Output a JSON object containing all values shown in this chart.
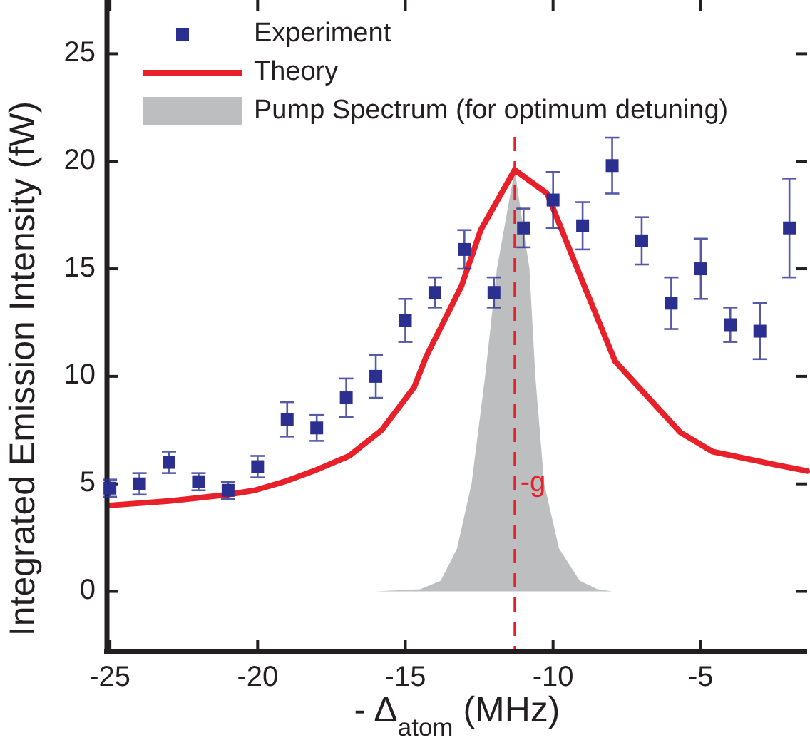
{
  "chart_data": {
    "type": "scatter",
    "xlabel": "- Δ$_{atom}$ (MHz)",
    "ylabel": "Integrated Emission Intensity (fW)",
    "xlim": [
      -25.1,
      -1.4
    ],
    "ylim": [
      -2.8,
      27.5
    ],
    "xticks": [
      -25,
      -20,
      -15,
      -10,
      -5
    ],
    "yticks": [
      0,
      5,
      10,
      15,
      20,
      25
    ],
    "grid": false,
    "legend": "top left",
    "series": [
      {
        "name": "Experiment",
        "marker": "square",
        "color": "#2b3090",
        "x": [
          -25,
          -24,
          -23,
          -22,
          -21,
          -20,
          -19,
          -18,
          -17,
          -16,
          -15,
          -14,
          -13,
          -12,
          -11,
          -10,
          -9,
          -8,
          -7,
          -6,
          -5,
          -4,
          -3,
          -2
        ],
        "values": [
          4.8,
          5.0,
          6.0,
          5.1,
          4.7,
          5.8,
          8.0,
          7.6,
          9.0,
          10.0,
          12.6,
          13.9,
          15.9,
          13.9,
          16.9,
          18.2,
          17.0,
          19.8,
          16.3,
          13.4,
          15.0,
          12.4,
          12.1,
          16.9
        ],
        "errors": [
          0.4,
          0.5,
          0.5,
          0.4,
          0.4,
          0.5,
          0.8,
          0.6,
          0.9,
          1.0,
          1.0,
          0.7,
          0.9,
          0.7,
          0.9,
          1.3,
          1.1,
          1.3,
          1.1,
          1.2,
          1.4,
          0.8,
          1.3,
          2.3
        ]
      },
      {
        "name": "Theory",
        "type": "line",
        "color": "#e8202a",
        "line_style": "solid",
        "x": [
          -25,
          -23,
          -21,
          -20.1,
          -19.1,
          -18.1,
          -16.9,
          -15.8,
          -14.7,
          -14.3,
          -13.1,
          -12.45,
          -11.3,
          -10.2,
          -9,
          -7.9,
          -5.7,
          -4.6,
          -2.5,
          -1.4
        ],
        "values": [
          4.0,
          4.2,
          4.5,
          4.7,
          5.1,
          5.6,
          6.3,
          7.5,
          9.5,
          10.9,
          14.2,
          16.8,
          19.6,
          18.5,
          14.4,
          10.7,
          7.4,
          6.5,
          5.9,
          5.6
        ]
      },
      {
        "name": "Pump Spectrum (for optimum detuning)",
        "type": "area",
        "color": "#bcbec0",
        "x": [
          -25,
          -16,
          -14.5,
          -13.8,
          -13.25,
          -12.76,
          -12.3,
          -11.9,
          -11.3,
          -10.8,
          -10.6,
          -10.3,
          -9.8,
          -9.1,
          -8.5,
          -8
        ],
        "values": [
          0,
          0,
          0.1,
          0.5,
          2,
          5,
          10,
          15,
          19.6,
          15,
          10,
          5,
          2,
          0.5,
          0.1,
          0
        ]
      }
    ],
    "ref_lines": [
      {
        "axis": "x",
        "value": -11.3,
        "label": "-g",
        "color": "#e8202a",
        "line_style": "dashed"
      }
    ]
  }
}
